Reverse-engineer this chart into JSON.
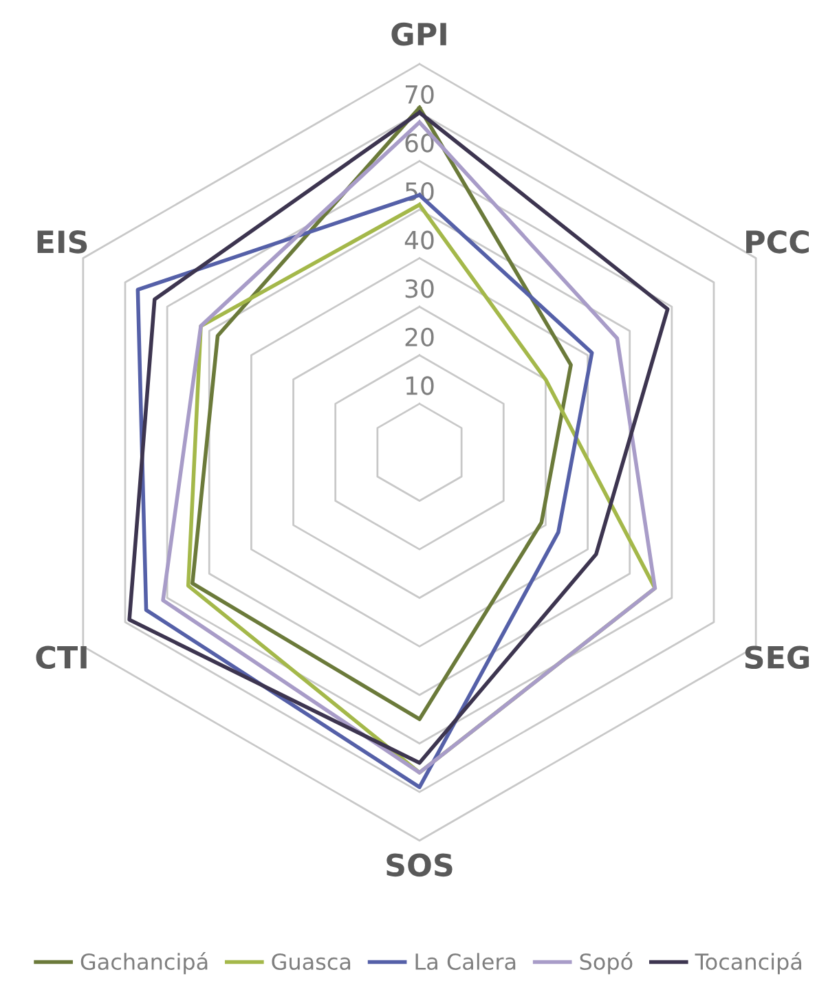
{
  "chart_data": {
    "type": "radar",
    "categories": [
      "GPI",
      "PCC",
      "SEG",
      "SOS",
      "CTI",
      "EIS"
    ],
    "ylim": [
      0,
      80
    ],
    "yticks": [
      10,
      20,
      30,
      40,
      50,
      60,
      70
    ],
    "grid": true,
    "legend": "bottom",
    "series": [
      {
        "name": "Gachancipá",
        "color": "#6b7a3a",
        "values": [
          71,
          36,
          29,
          55,
          54,
          48
        ]
      },
      {
        "name": "Guasca",
        "color": "#a4b84a",
        "values": [
          51,
          30,
          56,
          66,
          55,
          52
        ]
      },
      {
        "name": "La Calera",
        "color": "#5560a8",
        "values": [
          53,
          41,
          33,
          69,
          65,
          67
        ]
      },
      {
        "name": "Sopó",
        "color": "#a89cc8",
        "values": [
          68,
          47,
          56,
          66,
          61,
          52
        ]
      },
      {
        "name": "Tocancipá",
        "color": "#3d3550",
        "values": [
          70,
          59,
          42,
          64,
          69,
          63
        ]
      }
    ]
  }
}
